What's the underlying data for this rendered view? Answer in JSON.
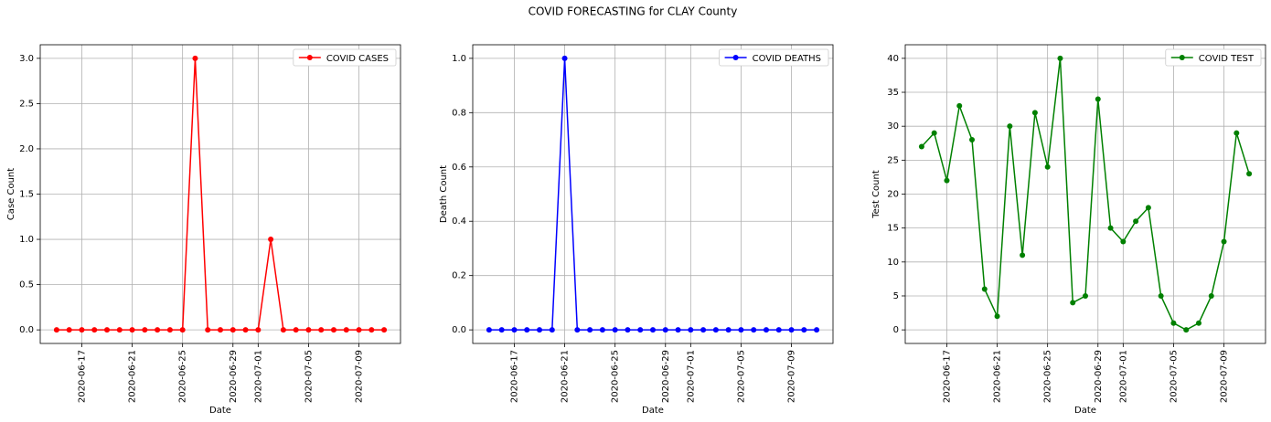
{
  "title": "COVID FORECASTING for CLAY County",
  "chart_data": [
    {
      "type": "line",
      "xlabel": "Date",
      "ylabel": "Case Count",
      "legend": "upper right",
      "grid": true,
      "x": [
        "2020-06-15",
        "2020-06-16",
        "2020-06-17",
        "2020-06-18",
        "2020-06-19",
        "2020-06-20",
        "2020-06-21",
        "2020-06-22",
        "2020-06-23",
        "2020-06-24",
        "2020-06-25",
        "2020-06-26",
        "2020-06-27",
        "2020-06-28",
        "2020-06-29",
        "2020-06-30",
        "2020-07-01",
        "2020-07-02",
        "2020-07-03",
        "2020-07-04",
        "2020-07-05",
        "2020-07-06",
        "2020-07-07",
        "2020-07-08",
        "2020-07-09",
        "2020-07-10",
        "2020-07-11"
      ],
      "series": [
        {
          "name": "COVID CASES",
          "color": "#ff0000",
          "values": [
            0,
            0,
            0,
            0,
            0,
            0,
            0,
            0,
            0,
            0,
            0,
            3,
            0,
            0,
            0,
            0,
            0,
            1,
            0,
            0,
            0,
            0,
            0,
            0,
            0,
            0,
            0
          ]
        }
      ],
      "xlim": [
        "2020-06-13T16:48",
        "2020-07-12T07:12"
      ],
      "xticks": [
        "2020-06-17",
        "2020-06-21",
        "2020-06-25",
        "2020-06-29",
        "2020-07-01",
        "2020-07-05",
        "2020-07-09"
      ],
      "ylim": [
        -0.15,
        3.15
      ],
      "yticks": [
        {
          "value": 0,
          "label": "0.0"
        },
        {
          "value": 0.5,
          "label": "0.5"
        },
        {
          "value": 1,
          "label": "1.0"
        },
        {
          "value": 1.5,
          "label": "1.5"
        },
        {
          "value": 2,
          "label": "2.0"
        },
        {
          "value": 2.5,
          "label": "2.5"
        },
        {
          "value": 3,
          "label": "3.0"
        }
      ]
    },
    {
      "type": "line",
      "xlabel": "Date",
      "ylabel": "Death Count",
      "legend": "upper right",
      "grid": true,
      "x": [
        "2020-06-15",
        "2020-06-16",
        "2020-06-17",
        "2020-06-18",
        "2020-06-19",
        "2020-06-20",
        "2020-06-21",
        "2020-06-22",
        "2020-06-23",
        "2020-06-24",
        "2020-06-25",
        "2020-06-26",
        "2020-06-27",
        "2020-06-28",
        "2020-06-29",
        "2020-06-30",
        "2020-07-01",
        "2020-07-02",
        "2020-07-03",
        "2020-07-04",
        "2020-07-05",
        "2020-07-06",
        "2020-07-07",
        "2020-07-08",
        "2020-07-09",
        "2020-07-10",
        "2020-07-11"
      ],
      "series": [
        {
          "name": "COVID DEATHS",
          "color": "#0000ff",
          "values": [
            0,
            0,
            0,
            0,
            0,
            0,
            1,
            0,
            0,
            0,
            0,
            0,
            0,
            0,
            0,
            0,
            0,
            0,
            0,
            0,
            0,
            0,
            0,
            0,
            0,
            0,
            0
          ]
        }
      ],
      "xlim": [
        "2020-06-13T16:48",
        "2020-07-12T07:12"
      ],
      "xticks": [
        "2020-06-17",
        "2020-06-21",
        "2020-06-25",
        "2020-06-29",
        "2020-07-01",
        "2020-07-05",
        "2020-07-09"
      ],
      "ylim": [
        -0.05,
        1.05
      ],
      "yticks": [
        {
          "value": 0,
          "label": "0.0"
        },
        {
          "value": 0.2,
          "label": "0.2"
        },
        {
          "value": 0.4,
          "label": "0.4"
        },
        {
          "value": 0.6,
          "label": "0.6"
        },
        {
          "value": 0.8,
          "label": "0.8"
        },
        {
          "value": 1,
          "label": "1.0"
        }
      ]
    },
    {
      "type": "line",
      "xlabel": "Date",
      "ylabel": "Test Count",
      "legend": "upper right",
      "grid": true,
      "x": [
        "2020-06-15",
        "2020-06-16",
        "2020-06-17",
        "2020-06-18",
        "2020-06-19",
        "2020-06-20",
        "2020-06-21",
        "2020-06-22",
        "2020-06-23",
        "2020-06-24",
        "2020-06-25",
        "2020-06-26",
        "2020-06-27",
        "2020-06-28",
        "2020-06-29",
        "2020-06-30",
        "2020-07-01",
        "2020-07-02",
        "2020-07-03",
        "2020-07-04",
        "2020-07-05",
        "2020-07-06",
        "2020-07-07",
        "2020-07-08",
        "2020-07-09",
        "2020-07-10",
        "2020-07-11"
      ],
      "series": [
        {
          "name": "COVID TEST",
          "color": "#008000",
          "values": [
            27,
            29,
            22,
            33,
            28,
            6,
            2,
            30,
            11,
            32,
            24,
            40,
            4,
            5,
            34,
            15,
            13,
            16,
            18,
            5,
            1,
            0,
            1,
            5,
            13,
            29,
            23
          ]
        }
      ],
      "xlim": [
        "2020-06-13T16:48",
        "2020-07-12T07:12"
      ],
      "xticks": [
        "2020-06-17",
        "2020-06-21",
        "2020-06-25",
        "2020-06-29",
        "2020-07-01",
        "2020-07-05",
        "2020-07-09"
      ],
      "ylim": [
        -2,
        42
      ],
      "yticks": [
        0,
        5,
        10,
        15,
        20,
        25,
        30,
        35,
        40
      ]
    }
  ]
}
